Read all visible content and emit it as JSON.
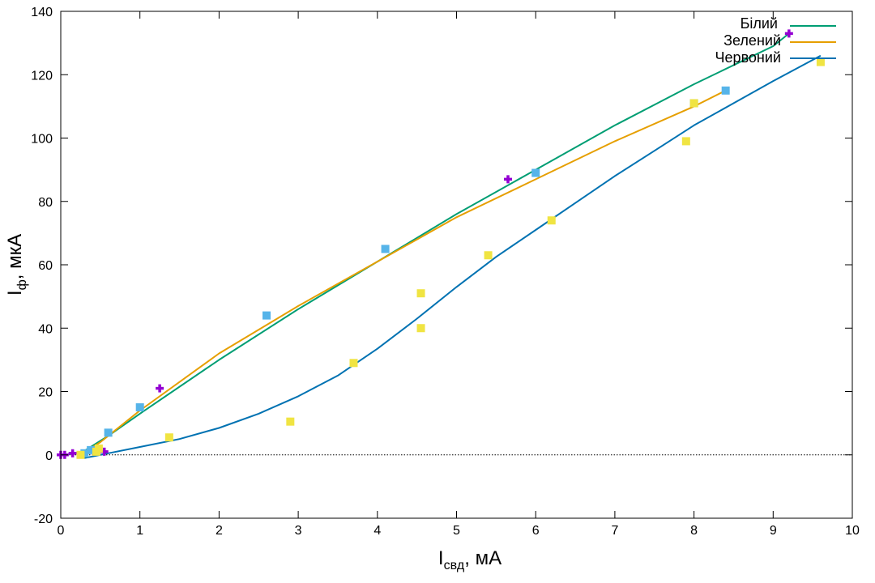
{
  "chart_data": {
    "type": "line",
    "title": "",
    "xlabel": {
      "main": "I",
      "sub": "свд",
      "suffix": ", мА"
    },
    "ylabel": {
      "main": "I",
      "sub": "ф",
      "suffix": ", мкА"
    },
    "xlim": [
      0,
      10
    ],
    "ylim": [
      -20,
      140
    ],
    "xticks": [
      0,
      1,
      2,
      3,
      4,
      5,
      6,
      7,
      8,
      9,
      10
    ],
    "yticks": [
      -20,
      0,
      20,
      40,
      60,
      80,
      100,
      120,
      140
    ],
    "grid": false,
    "zero_line": true,
    "legend_position": "top-right",
    "series": [
      {
        "name": "Білий",
        "color": "#009e73",
        "line": {
          "x": [
            0,
            0.25,
            0.6,
            1,
            2,
            3,
            4,
            5,
            6,
            7,
            8,
            9,
            9.2
          ],
          "y": [
            0,
            0.5,
            6,
            13,
            30,
            46,
            61,
            76,
            90,
            104,
            117,
            129,
            133
          ]
        },
        "points": {
          "marker": "plus",
          "color": "#9400d3",
          "x": [
            0,
            0.05,
            0.15,
            0.55,
            1.25,
            5.65,
            9.2
          ],
          "y": [
            0,
            0,
            0.5,
            1,
            21,
            87,
            133
          ]
        }
      },
      {
        "name": "Зелений",
        "color": "#e69f00",
        "line": {
          "x": [
            0.25,
            0.5,
            1,
            2,
            3,
            4,
            5,
            6,
            7,
            8,
            8.4
          ],
          "y": [
            0,
            4,
            14,
            32,
            47,
            61,
            75,
            87,
            99,
            110,
            115
          ]
        },
        "points": {
          "marker": "square",
          "color": "#56b4e9",
          "x": [
            0.3,
            0.38,
            0.6,
            1,
            2.6,
            4.1,
            6,
            8,
            8.4
          ],
          "y": [
            0.5,
            1.5,
            7,
            15,
            44,
            65,
            89,
            111,
            115
          ]
        }
      },
      {
        "name": "Червоний",
        "color": "#0072b2",
        "line": {
          "x": [
            0.3,
            0.6,
            1,
            1.5,
            2,
            2.5,
            3,
            3.5,
            4,
            4.5,
            5,
            5.5,
            6,
            6.5,
            7,
            7.5,
            8,
            8.5,
            9,
            9.6
          ],
          "y": [
            -1,
            0.5,
            2.5,
            5,
            8.5,
            13,
            18.5,
            25,
            33.5,
            43,
            53,
            62.5,
            71,
            79.5,
            88,
            96,
            104,
            111,
            118,
            126
          ]
        },
        "points": {
          "marker": "square",
          "color": "#f0e442",
          "x": [
            0.25,
            0.45,
            0.48,
            1.37,
            2.9,
            3.7,
            4.55,
            4.55,
            5.4,
            6.2,
            7.9,
            8,
            9.6
          ],
          "y": [
            0,
            1,
            2,
            5.5,
            10.5,
            29,
            51,
            40,
            63,
            74,
            99,
            111,
            124
          ]
        }
      }
    ]
  }
}
